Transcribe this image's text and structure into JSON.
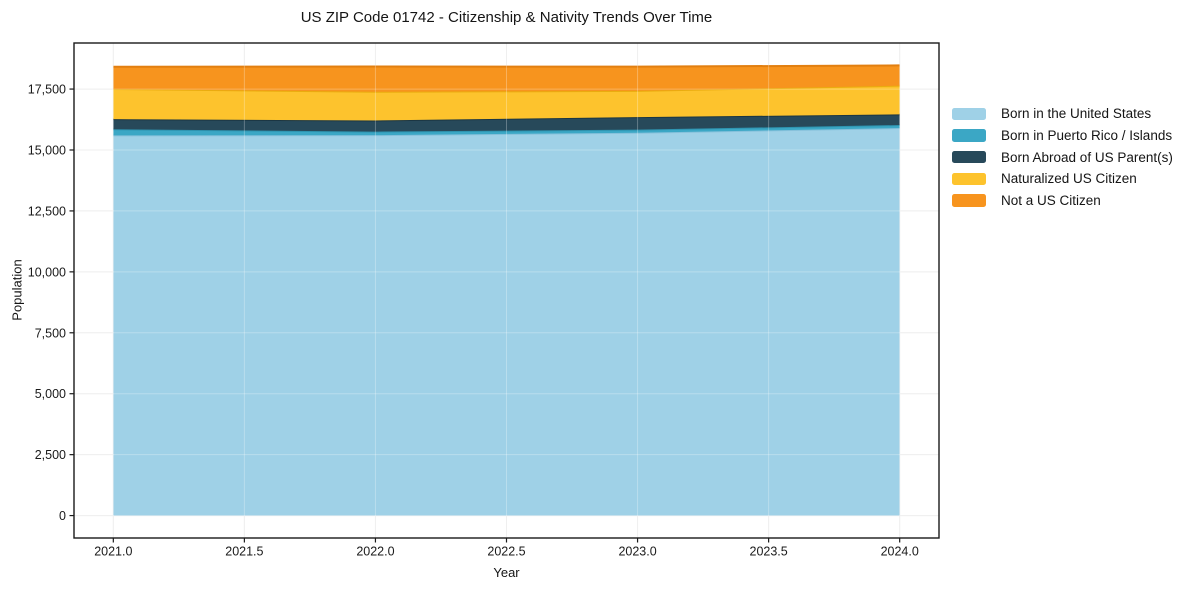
{
  "chart_data": {
    "type": "area",
    "stacked": true,
    "title": "US ZIP Code 01742 - Citizenship & Nativity Trends Over Time",
    "xlabel": "Year",
    "ylabel": "Population",
    "x": [
      2021,
      2022,
      2023,
      2024
    ],
    "series": [
      {
        "name": "Born in the United States",
        "color": "#9FD1E7",
        "edge_color": "#86C1DB",
        "values": [
          15600,
          15610,
          15710,
          15900
        ]
      },
      {
        "name": "Born in Puerto Rico / Islands",
        "color": "#3BA7C5",
        "edge_color": "#2E93AF",
        "values": [
          250,
          145,
          125,
          125
        ]
      },
      {
        "name": "Born Abroad of US Parent(s)",
        "color": "#27495A",
        "edge_color": "#1B3643",
        "values": [
          415,
          455,
          515,
          435
        ]
      },
      {
        "name": "Naturalized US Citizen",
        "color": "#FDC32D",
        "edge_color": "#EAAC0F",
        "values": [
          1240,
          1180,
          1075,
          1180
        ]
      },
      {
        "name": "Not a US Citizen",
        "color": "#F7941E",
        "edge_color": "#E27F10",
        "values": [
          910,
          1035,
          995,
          830
        ]
      }
    ],
    "xlim": [
      2020.85,
      2024.15
    ],
    "ylim": [
      -920,
      19390
    ],
    "xticks": [
      2021.0,
      2021.5,
      2022.0,
      2022.5,
      2023.0,
      2023.5,
      2024.0
    ],
    "yticks": [
      0,
      2500,
      5000,
      7500,
      10000,
      12500,
      15000,
      17500
    ],
    "grid": true,
    "legend_position": "right",
    "frame_color": "#1a1a1a",
    "grid_color": "#e9e9e9",
    "tick_label_color": "#1a1a1a"
  }
}
